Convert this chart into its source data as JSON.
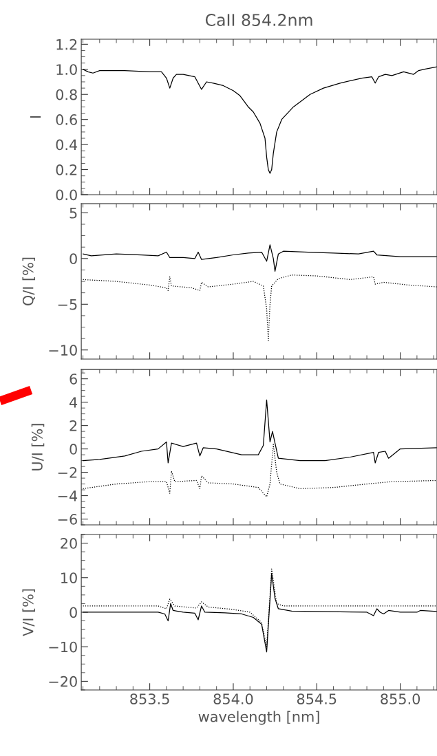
{
  "chart_data": [
    {
      "type": "line",
      "title": "CaII 854.2nm",
      "ylabel": "I",
      "xlim": [
        853.09,
        855.22
      ],
      "xticks": [
        853.5,
        854.0,
        854.5,
        855.0
      ],
      "ylim": [
        0.0,
        1.24
      ],
      "yticks": [
        {
          "value": 0.0,
          "label": "0.0"
        },
        0.2,
        0.4,
        0.6,
        0.8,
        {
          "value": 1.0,
          "label": "1.0"
        },
        1.2
      ],
      "tick_labels": "y",
      "grid": false,
      "legend": false,
      "series": [
        {
          "color": "#000000",
          "line_style": "solid",
          "x": [
            853.1,
            853.13,
            853.16,
            853.2,
            853.35,
            853.5,
            853.57,
            853.6,
            853.62,
            853.64,
            853.66,
            853.7,
            853.77,
            853.81,
            853.84,
            853.88,
            853.94,
            854.0,
            854.04,
            854.09,
            854.12,
            854.16,
            854.19,
            854.2,
            854.21,
            854.22,
            854.23,
            854.24,
            854.26,
            854.29,
            854.36,
            854.46,
            854.54,
            854.64,
            854.77,
            854.83,
            854.85,
            854.87,
            854.91,
            854.95,
            855.02,
            855.08,
            855.11,
            855.14,
            855.22
          ],
          "values": [
            1.0,
            0.98,
            0.97,
            0.99,
            0.99,
            0.98,
            0.98,
            0.93,
            0.85,
            0.93,
            0.96,
            0.96,
            0.94,
            0.84,
            0.9,
            0.89,
            0.87,
            0.83,
            0.79,
            0.7,
            0.66,
            0.57,
            0.45,
            0.3,
            0.2,
            0.17,
            0.2,
            0.33,
            0.5,
            0.6,
            0.7,
            0.8,
            0.85,
            0.89,
            0.93,
            0.94,
            0.89,
            0.94,
            0.96,
            0.95,
            0.98,
            0.96,
            0.99,
            1.0,
            1.02
          ]
        }
      ]
    },
    {
      "type": "line",
      "ylabel": "Q/I [%]",
      "xlim": [
        853.09,
        855.22
      ],
      "xticks": [
        853.5,
        854.0,
        854.5,
        855.0
      ],
      "ylim": [
        -11,
        6
      ],
      "yticks": [
        {
          "value": 5,
          "label": "5"
        },
        {
          "value": 0,
          "label": "0"
        },
        {
          "value": -5,
          "label": "−5"
        },
        {
          "value": -10,
          "label": "−10"
        }
      ],
      "tick_labels": "y",
      "grid": false,
      "legend": false,
      "series": [
        {
          "color": "#000000",
          "line_style": "solid",
          "x": [
            853.1,
            853.15,
            853.3,
            853.45,
            853.55,
            853.6,
            853.62,
            853.7,
            853.77,
            853.79,
            853.81,
            853.9,
            854.0,
            854.09,
            854.17,
            854.2,
            854.22,
            854.24,
            854.25,
            854.27,
            854.3,
            854.45,
            854.6,
            854.75,
            854.84,
            854.86,
            855.0,
            855.22
          ],
          "values": [
            0.5,
            0.3,
            0.5,
            0.4,
            0.3,
            0.7,
            0.1,
            0.1,
            0.0,
            0.7,
            -0.1,
            0.1,
            0.4,
            0.6,
            0.7,
            -0.3,
            1.5,
            0.0,
            -1.4,
            0.5,
            0.8,
            0.7,
            0.6,
            0.5,
            0.8,
            0.4,
            0.2,
            0.2
          ]
        },
        {
          "color": "#000000",
          "line_style": "dotted",
          "x": [
            853.1,
            853.3,
            853.5,
            853.6,
            853.61,
            853.62,
            853.63,
            853.75,
            853.8,
            853.81,
            853.85,
            854.0,
            854.12,
            854.18,
            854.2,
            854.21,
            854.22,
            854.23,
            854.27,
            854.35,
            854.5,
            854.7,
            854.84,
            854.85,
            854.9,
            855.05,
            855.22
          ],
          "values": [
            -2.3,
            -2.5,
            -2.9,
            -3.2,
            -3.5,
            -2.0,
            -3.0,
            -3.2,
            -3.5,
            -2.6,
            -3.1,
            -2.8,
            -2.5,
            -3.0,
            -5.5,
            -9.0,
            -5.0,
            -3.0,
            -2.2,
            -1.8,
            -1.9,
            -2.3,
            -2.0,
            -2.8,
            -2.6,
            -2.9,
            -3.1
          ]
        }
      ]
    },
    {
      "type": "line",
      "ylabel": "U/I [%]",
      "xlim": [
        853.09,
        855.22
      ],
      "xticks": [
        853.5,
        854.0,
        854.5,
        855.0
      ],
      "ylim": [
        -6.5,
        6.8
      ],
      "yticks": [
        {
          "value": 6,
          "label": "6"
        },
        {
          "value": 4,
          "label": "4"
        },
        {
          "value": 2,
          "label": "2"
        },
        {
          "value": 0,
          "label": "0"
        },
        {
          "value": -2,
          "label": "−2"
        },
        {
          "value": -4,
          "label": "−4"
        },
        {
          "value": -6,
          "label": "−6"
        }
      ],
      "tick_labels": "y",
      "grid": false,
      "legend": false,
      "series": [
        {
          "color": "#000000",
          "line_style": "solid",
          "x": [
            853.1,
            853.2,
            853.35,
            853.45,
            853.55,
            853.6,
            853.61,
            853.63,
            853.7,
            853.78,
            853.8,
            853.82,
            853.9,
            854.05,
            854.15,
            854.18,
            854.2,
            854.22,
            854.235,
            854.25,
            854.27,
            854.4,
            854.55,
            854.7,
            854.84,
            854.85,
            854.87,
            854.91,
            854.93,
            855.0,
            855.22
          ],
          "values": [
            -1.0,
            -0.9,
            -0.6,
            -0.2,
            0.0,
            0.6,
            -1.2,
            0.5,
            0.2,
            0.5,
            -0.6,
            0.1,
            0.0,
            -0.5,
            -0.5,
            0.3,
            4.2,
            0.6,
            1.5,
            0.5,
            -0.8,
            -1.0,
            -1.0,
            -0.7,
            -0.3,
            -1.2,
            -0.3,
            -0.2,
            -0.8,
            0.0,
            0.1
          ]
        },
        {
          "color": "#000000",
          "line_style": "dotted",
          "x": [
            853.1,
            853.3,
            853.5,
            853.6,
            853.62,
            853.63,
            853.65,
            853.78,
            853.8,
            853.81,
            853.85,
            854.0,
            854.15,
            854.2,
            854.22,
            854.24,
            854.26,
            854.28,
            854.4,
            854.6,
            854.8,
            854.95,
            855.22
          ],
          "values": [
            -3.4,
            -3.0,
            -2.8,
            -2.8,
            -3.8,
            -1.9,
            -2.8,
            -2.7,
            -3.4,
            -2.3,
            -2.9,
            -3.0,
            -3.3,
            -4.1,
            -3.0,
            0.4,
            -2.0,
            -3.0,
            -3.4,
            -3.3,
            -3.0,
            -2.8,
            -2.7
          ]
        }
      ]
    },
    {
      "type": "line",
      "ylabel": "V/I [%]",
      "xlabel": "wavelength [nm]",
      "xlim": [
        853.09,
        855.22
      ],
      "xticks": [
        853.5,
        {
          "value": 854.0,
          "label": "854.0"
        },
        854.5,
        {
          "value": 855.0,
          "label": "855.0"
        }
      ],
      "ylim": [
        -22.5,
        22.5
      ],
      "yticks": [
        {
          "value": 20,
          "label": "20"
        },
        {
          "value": 10,
          "label": "10"
        },
        {
          "value": 0,
          "label": "0"
        },
        {
          "value": -10,
          "label": "−10"
        },
        {
          "value": -20,
          "label": "−20"
        }
      ],
      "grid": false,
      "legend": false,
      "series": [
        {
          "color": "#000000",
          "line_style": "solid",
          "x": [
            853.1,
            853.55,
            853.59,
            853.61,
            853.625,
            853.64,
            853.7,
            853.77,
            853.79,
            853.81,
            853.83,
            853.95,
            854.05,
            854.12,
            854.17,
            854.2,
            854.215,
            854.23,
            854.25,
            854.27,
            854.35,
            854.8,
            854.84,
            854.86,
            854.88,
            854.9,
            854.93,
            855.0,
            855.1,
            855.12,
            855.22
          ],
          "values": [
            0,
            0,
            -0.5,
            -2.5,
            2.5,
            0.5,
            0.0,
            -0.3,
            -2.2,
            1.8,
            0.0,
            -0.2,
            -0.5,
            -1.5,
            -3.5,
            -11.5,
            0.0,
            11.2,
            4.0,
            1.0,
            0.3,
            0.0,
            -1.0,
            1.0,
            0.0,
            -0.5,
            0.5,
            0.0,
            0.0,
            0.5,
            0.2
          ]
        },
        {
          "color": "#000000",
          "line_style": "dotted",
          "x": [
            853.1,
            853.55,
            853.6,
            853.62,
            853.65,
            853.78,
            853.81,
            853.85,
            854.0,
            854.1,
            854.17,
            854.2,
            854.23,
            854.26,
            854.3,
            855.22
          ],
          "values": [
            1.8,
            1.8,
            1.0,
            3.8,
            1.8,
            1.2,
            3.0,
            1.5,
            0.8,
            0.0,
            -3.0,
            -10,
            12.5,
            2.5,
            1.8,
            1.8
          ]
        }
      ]
    }
  ]
}
